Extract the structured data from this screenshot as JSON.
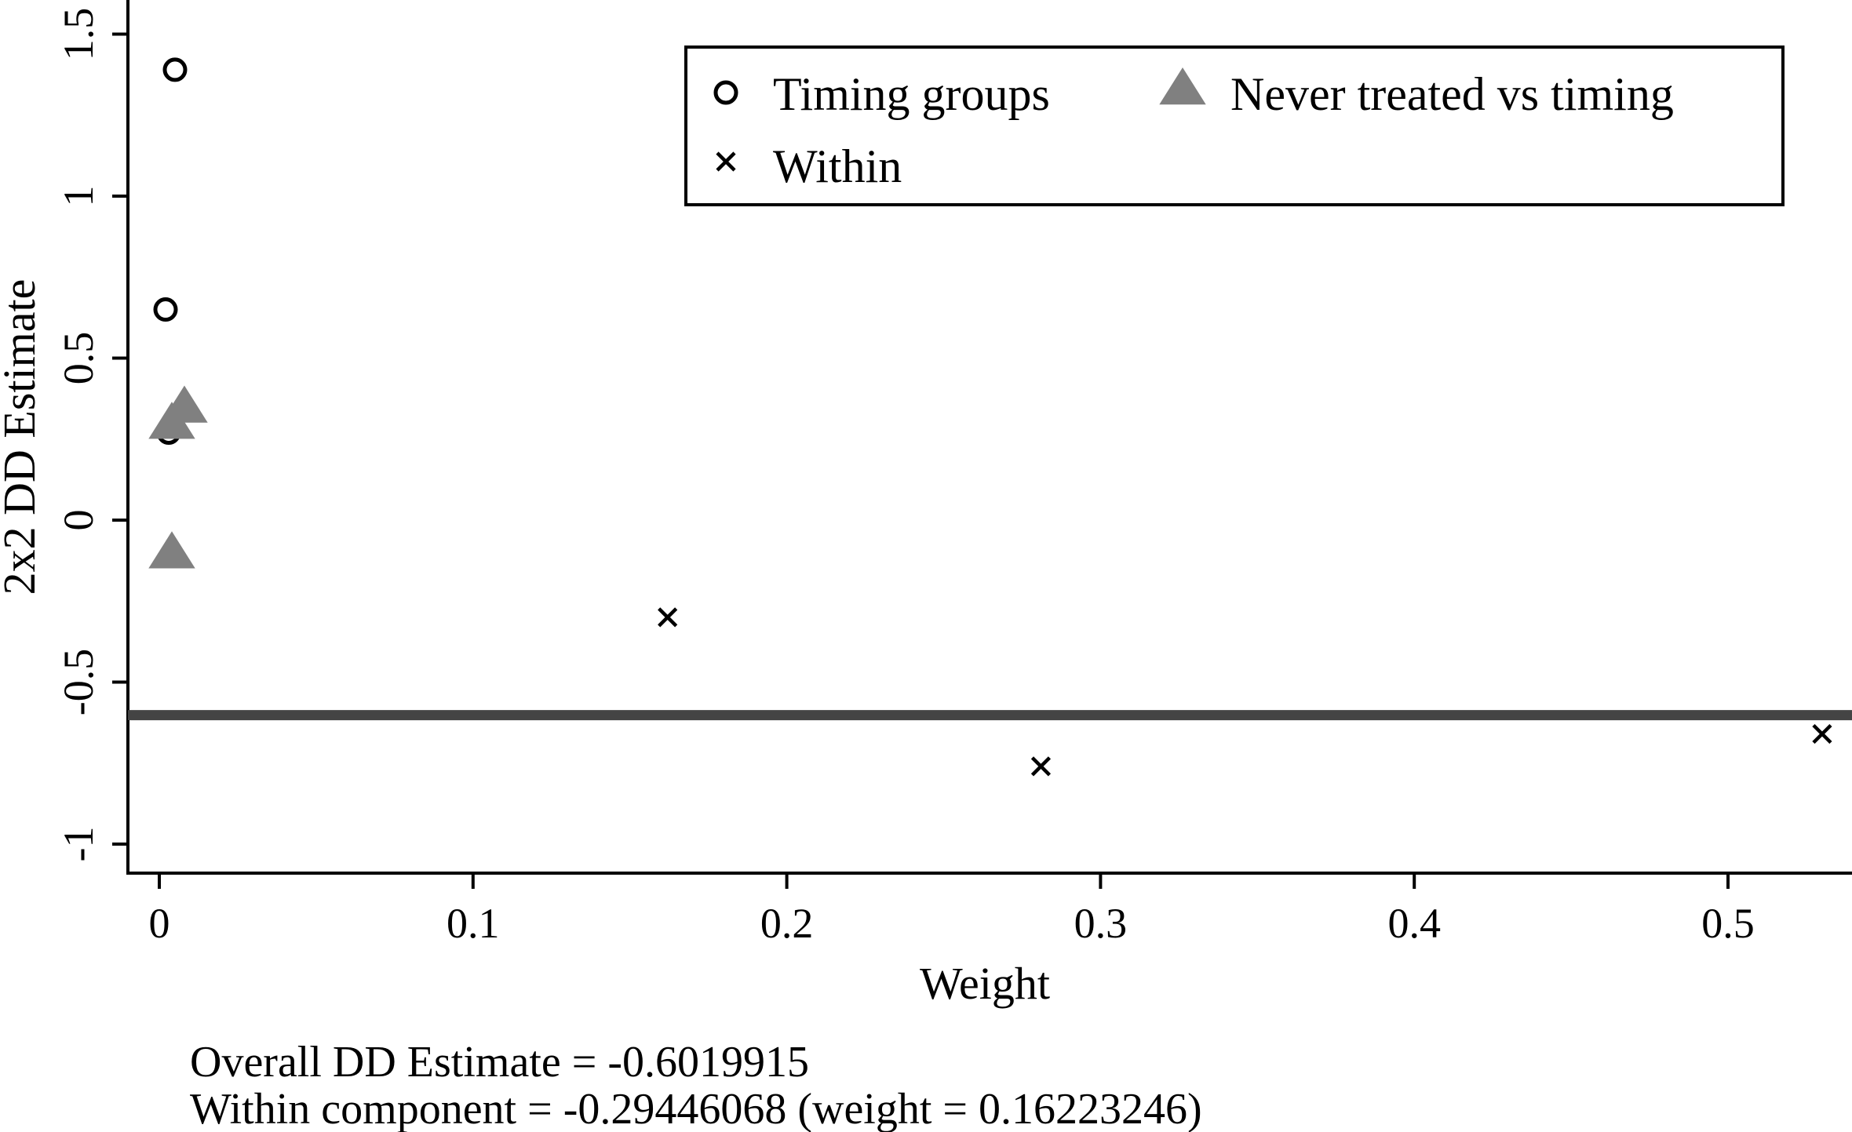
{
  "chart_data": {
    "type": "scatter",
    "xlabel": "Weight",
    "ylabel": "2x2 DD Estimate",
    "xlim": [
      -0.01,
      0.54
    ],
    "ylim": [
      -1.1,
      1.6
    ],
    "xticks": [
      0,
      0.1,
      0.2,
      0.3,
      0.4,
      0.5
    ],
    "xtick_labels": [
      "0",
      "0.1",
      "0.2",
      "0.3",
      "0.4",
      "0.5"
    ],
    "yticks": [
      -1,
      -0.5,
      0,
      0.5,
      1,
      1.5
    ],
    "ytick_labels": [
      "-1",
      "-0.5",
      "0",
      "0.5",
      "1",
      "1.5"
    ],
    "grid": false,
    "legend_placement": "top-right",
    "series": [
      {
        "name": "Timing groups",
        "marker": "hollow-circle",
        "color": "#000000",
        "points": [
          {
            "x": 0.005,
            "y": 1.39
          },
          {
            "x": 0.002,
            "y": 0.65
          },
          {
            "x": 0.003,
            "y": 0.27
          }
        ]
      },
      {
        "name": "Never treated vs timing",
        "marker": "filled-triangle",
        "color": "#808080",
        "points": [
          {
            "x": 0.008,
            "y": 0.35
          },
          {
            "x": 0.004,
            "y": 0.3
          },
          {
            "x": 0.004,
            "y": -0.1
          }
        ]
      },
      {
        "name": "Within",
        "marker": "x",
        "color": "#000000",
        "points": [
          {
            "x": 0.162,
            "y": -0.3
          },
          {
            "x": 0.281,
            "y": -0.76
          },
          {
            "x": 0.53,
            "y": -0.66
          }
        ]
      }
    ],
    "reference_line": {
      "orientation": "horizontal",
      "y": -0.6019915,
      "color": "#444444"
    },
    "notes": [
      "Overall DD Estimate = -0.6019915",
      "Within component = -0.29446068 (weight = 0.16223246)"
    ]
  }
}
